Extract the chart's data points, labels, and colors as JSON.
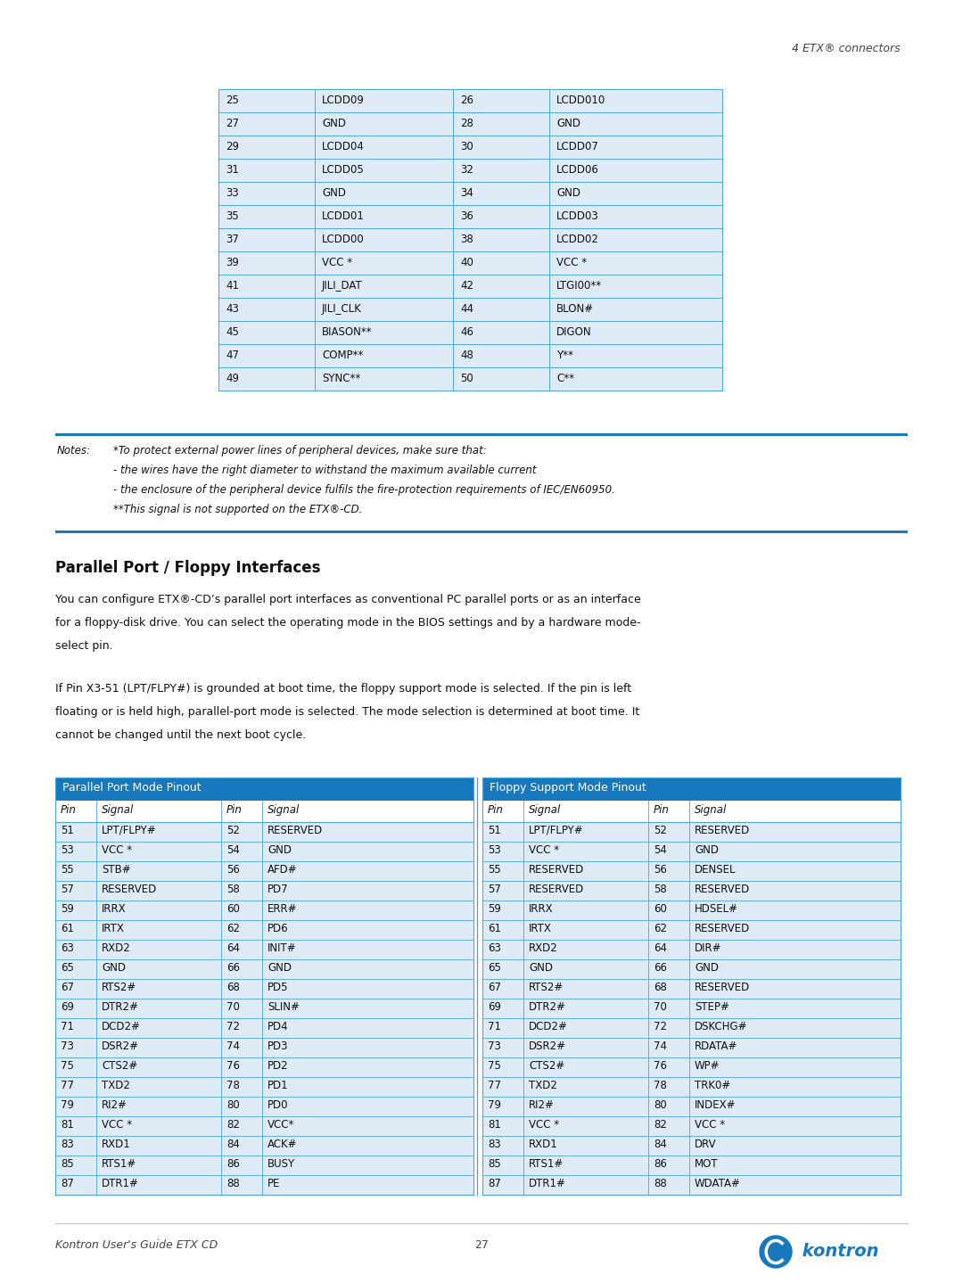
{
  "page_header_right": "4 ETX® connectors",
  "top_table": {
    "rows": [
      [
        "25",
        "LCDD09",
        "26",
        "LCDD010"
      ],
      [
        "27",
        "GND",
        "28",
        "GND"
      ],
      [
        "29",
        "LCDD04",
        "30",
        "LCDD07"
      ],
      [
        "31",
        "LCDD05",
        "32",
        "LCDD06"
      ],
      [
        "33",
        "GND",
        "34",
        "GND"
      ],
      [
        "35",
        "LCDD01",
        "36",
        "LCDD03"
      ],
      [
        "37",
        "LCDD00",
        "38",
        "LCDD02"
      ],
      [
        "39",
        "VCC *",
        "40",
        "VCC *"
      ],
      [
        "41",
        "JILI_DAT",
        "42",
        "LTGI00**"
      ],
      [
        "43",
        "JILI_CLK",
        "44",
        "BLON#"
      ],
      [
        "45",
        "BIASON**",
        "46",
        "DIGON"
      ],
      [
        "47",
        "COMP**",
        "48",
        "Y**"
      ],
      [
        "49",
        "SYNC**",
        "50",
        "C**"
      ]
    ],
    "bg_color": "#deeaf5",
    "line_color": "#4da6d9",
    "text_color": "#000000"
  },
  "notes_lines": [
    [
      "Notes:",
      "*To protect external power lines of peripheral devices, make sure that:"
    ],
    [
      "",
      "- the wires have the right diameter to withstand the maximum available current"
    ],
    [
      "",
      "- the enclosure of the peripheral device fulfils the fire-protection requirements of IEC/EN60950."
    ],
    [
      "",
      "**This signal is not supported on the ETX®-CD."
    ]
  ],
  "notes_bar_color": "#1a7abf",
  "section_title": "Parallel Port / Floppy Interfaces",
  "body_text1_lines": [
    "You can configure ETX®-CD’s parallel port interfaces as conventional PC parallel ports or as an interface",
    "for a floppy-disk drive. You can select the operating mode in the BIOS settings and by a hardware mode-",
    "select pin."
  ],
  "body_text2_lines": [
    "If Pin X3-51 (LPT/FLPY#) is grounded at boot time, the floppy support mode is selected. If the pin is left",
    "floating or is held high, parallel-port mode is selected. The mode selection is determined at boot time. It",
    "cannot be changed until the next boot cycle."
  ],
  "table_header_bg": "#1878be",
  "table_header_text": "#ffffff",
  "table_row_bg": "#deeaf5",
  "table_line_color": "#4da6d9",
  "parallel_header": "Parallel Port Mode Pinout",
  "floppy_header": "Floppy Support Mode Pinout",
  "col_headers": [
    "Pin",
    "Signal",
    "Pin",
    "Signal"
  ],
  "parallel_rows": [
    [
      "51",
      "LPT/FLPY#",
      "52",
      "RESERVED"
    ],
    [
      "53",
      "VCC *",
      "54",
      "GND"
    ],
    [
      "55",
      "STB#",
      "56",
      "AFD#"
    ],
    [
      "57",
      "RESERVED",
      "58",
      "PD7"
    ],
    [
      "59",
      "IRRX",
      "60",
      "ERR#"
    ],
    [
      "61",
      "IRTX",
      "62",
      "PD6"
    ],
    [
      "63",
      "RXD2",
      "64",
      "INIT#"
    ],
    [
      "65",
      "GND",
      "66",
      "GND"
    ],
    [
      "67",
      "RTS2#",
      "68",
      "PD5"
    ],
    [
      "69",
      "DTR2#",
      "70",
      "SLIN#"
    ],
    [
      "71",
      "DCD2#",
      "72",
      "PD4"
    ],
    [
      "73",
      "DSR2#",
      "74",
      "PD3"
    ],
    [
      "75",
      "CTS2#",
      "76",
      "PD2"
    ],
    [
      "77",
      "TXD2",
      "78",
      "PD1"
    ],
    [
      "79",
      "RI2#",
      "80",
      "PD0"
    ],
    [
      "81",
      "VCC *",
      "82",
      "VCC*"
    ],
    [
      "83",
      "RXD1",
      "84",
      "ACK#"
    ],
    [
      "85",
      "RTS1#",
      "86",
      "BUSY"
    ],
    [
      "87",
      "DTR1#",
      "88",
      "PE"
    ]
  ],
  "floppy_rows": [
    [
      "51",
      "LPT/FLPY#",
      "52",
      "RESERVED"
    ],
    [
      "53",
      "VCC *",
      "54",
      "GND"
    ],
    [
      "55",
      "RESERVED",
      "56",
      "DENSEL"
    ],
    [
      "57",
      "RESERVED",
      "58",
      "RESERVED"
    ],
    [
      "59",
      "IRRX",
      "60",
      "HDSEL#"
    ],
    [
      "61",
      "IRTX",
      "62",
      "RESERVED"
    ],
    [
      "63",
      "RXD2",
      "64",
      "DIR#"
    ],
    [
      "65",
      "GND",
      "66",
      "GND"
    ],
    [
      "67",
      "RTS2#",
      "68",
      "RESERVED"
    ],
    [
      "69",
      "DTR2#",
      "70",
      "STEP#"
    ],
    [
      "71",
      "DCD2#",
      "72",
      "DSKCHG#"
    ],
    [
      "73",
      "DSR2#",
      "74",
      "RDATA#"
    ],
    [
      "75",
      "CTS2#",
      "76",
      "WP#"
    ],
    [
      "77",
      "TXD2",
      "78",
      "TRK0#"
    ],
    [
      "79",
      "RI2#",
      "80",
      "INDEX#"
    ],
    [
      "81",
      "VCC *",
      "82",
      "VCC *"
    ],
    [
      "83",
      "RXD1",
      "84",
      "DRV"
    ],
    [
      "85",
      "RTS1#",
      "86",
      "MOT"
    ],
    [
      "87",
      "DTR1#",
      "88",
      "WDATA#"
    ]
  ],
  "page_footer_left": "Kontron User's Guide ETX CD",
  "page_footer_center": "27",
  "logo_text": " kontron"
}
